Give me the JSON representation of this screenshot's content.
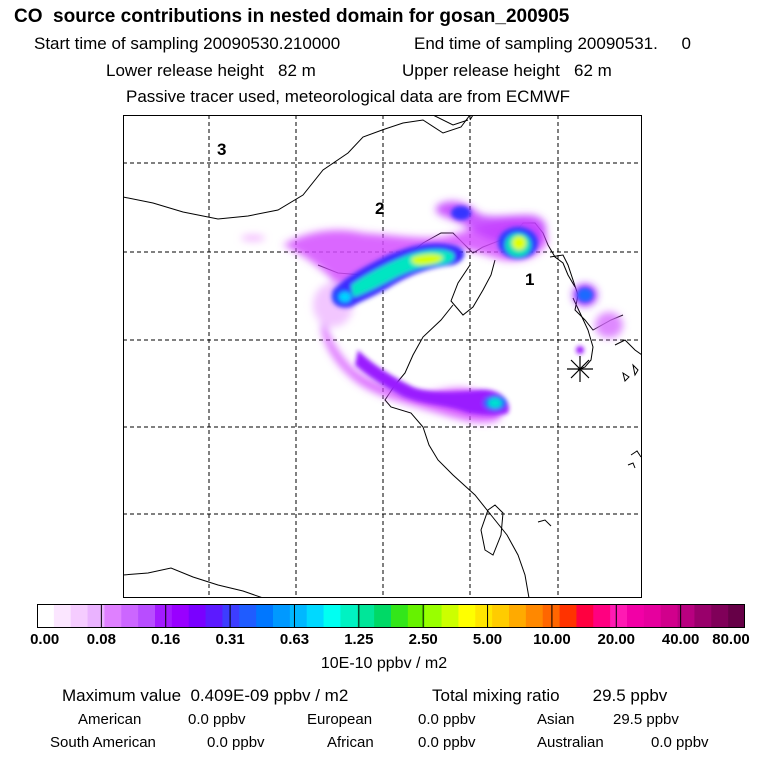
{
  "header": {
    "title": "CO  source contributions in nested domain for gosan_200905",
    "line1_left": "Start time of sampling 20090530.210000",
    "line1_right": "End time of sampling 20090531.     0",
    "line2_left": "Lower release height   82 m",
    "line2_right": "Upper release height   62 m",
    "line3": "Passive tracer used, meteorological data are from ECMWF"
  },
  "map": {
    "region_labels": [
      "1",
      "2",
      "3"
    ],
    "receptor_marker": "star-marker"
  },
  "colorbar": {
    "ticks": [
      "0.00",
      "0.08",
      "0.16",
      "0.31",
      "0.63",
      "1.25",
      "2.50",
      "5.00",
      "10.00",
      "20.00",
      "40.00",
      "80.00"
    ],
    "units": "10E-10 ppbv / m2",
    "colors": [
      "#ffffff",
      "#fbe6ff",
      "#f5ccff",
      "#eab3ff",
      "#df80ff",
      "#cc66ff",
      "#b84dff",
      "#a31aff",
      "#9900ff",
      "#7a00ff",
      "#5c1aff",
      "#3d3dff",
      "#1f5cff",
      "#0077ff",
      "#0099ff",
      "#00b8ff",
      "#00d9ff",
      "#00fff2",
      "#00f2c2",
      "#00e699",
      "#00d966",
      "#33e61a",
      "#66f200",
      "#99ff00",
      "#ccff00",
      "#ffff00",
      "#ffe600",
      "#ffcc00",
      "#ffaa00",
      "#ff8800",
      "#ff6600",
      "#ff3300",
      "#ff0040",
      "#ff0080",
      "#ff1ab3",
      "#f200a6",
      "#e6009e",
      "#d1008c",
      "#b80080",
      "#99006b",
      "#800059",
      "#660047"
    ]
  },
  "summary": {
    "max_label": "Maximum value  0.409E-09 ppbv / m2",
    "total_label": "Total mixing ratio       29.5 ppbv",
    "american_label": "American",
    "american_value": "0.0 ppbv",
    "european_label": "European",
    "european_value": "0.0 ppbv",
    "asian_label": "Asian",
    "asian_value": "29.5 ppbv",
    "south_american_label": "South American",
    "south_american_value": "0.0 ppbv",
    "african_label": "African",
    "african_value": "0.0 ppbv",
    "australian_label": "Australian",
    "australian_value": "0.0 ppbv"
  }
}
